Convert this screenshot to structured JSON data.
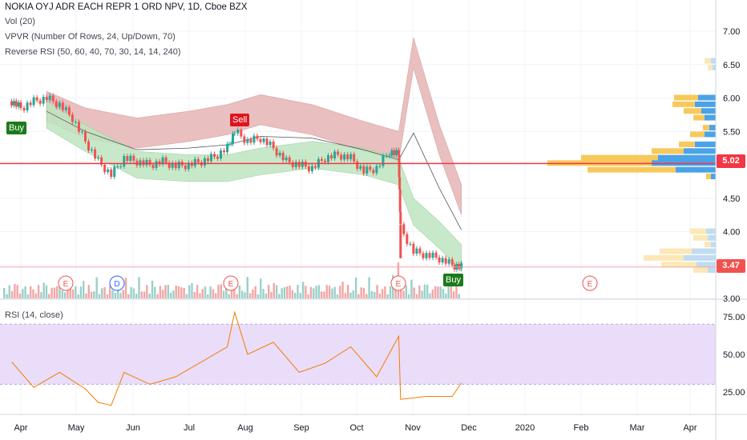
{
  "header": {
    "symbol": "NOKIA OYJ ADR EACH REPR 1 ORD NPV, 1D, Cboe BZX",
    "ind1": "Vol (20)",
    "ind2": "VPVR (Number Of Rows, 24, Up/Down, 70)",
    "ind3": "Reverse RSI (50, 60, 40, 70, 30, 14, 14, 240)"
  },
  "rsi_panel": {
    "label": "RSI (14, close)"
  },
  "price_labels": {
    "hline": "5.02",
    "current": "3.47"
  },
  "signals": {
    "buy1": "Buy",
    "sell": "Sell",
    "buy2": "Buy"
  },
  "event_markers": [
    "E",
    "D",
    "E",
    "E",
    "E"
  ],
  "colors": {
    "up": "#26a69a",
    "down": "#ef5350",
    "band_red": "#e6b4b4",
    "band_green": "#bfe6c0",
    "rsi": "#f57c00",
    "rsi_band": "#e9ddf9",
    "hline": "#f23645",
    "buy": "#1b7a1b",
    "sell": "#e0141e"
  },
  "chart_data": [
    {
      "type": "candlestick",
      "title": "NOKIA OYJ ADR EACH REPR 1 ORD NPV, 1D, Cboe BZX",
      "x_ticks": [
        "Apr",
        "May",
        "Jun",
        "Jul",
        "Aug",
        "Sep",
        "Oct",
        "Nov",
        "Dec",
        "2020",
        "Feb",
        "Mar",
        "Apr"
      ],
      "y_ticks": [
        3.0,
        3.5,
        4.0,
        4.5,
        5.0,
        5.5,
        6.0,
        6.5,
        7.0
      ],
      "ylim": [
        3.0,
        7.2
      ],
      "close_series": [
        {
          "x": "Mar 27",
          "y": 5.95
        },
        {
          "x": "Apr 1",
          "y": 5.85
        },
        {
          "x": "Apr 8",
          "y": 5.95
        },
        {
          "x": "Apr 15",
          "y": 6.0
        },
        {
          "x": "Apr 22",
          "y": 5.9
        },
        {
          "x": "Apr 29",
          "y": 5.7
        },
        {
          "x": "May 6",
          "y": 5.35
        },
        {
          "x": "May 13",
          "y": 5.05
        },
        {
          "x": "May 20",
          "y": 4.85
        },
        {
          "x": "May 27",
          "y": 5.1
        },
        {
          "x": "Jun 3",
          "y": 5.05
        },
        {
          "x": "Jun 10",
          "y": 5.0
        },
        {
          "x": "Jun 17",
          "y": 5.05
        },
        {
          "x": "Jun 24",
          "y": 4.98
        },
        {
          "x": "Jul 1",
          "y": 5.0
        },
        {
          "x": "Jul 8",
          "y": 5.05
        },
        {
          "x": "Jul 15",
          "y": 5.12
        },
        {
          "x": "Jul 22",
          "y": 5.25
        },
        {
          "x": "Jul 26",
          "y": 5.5
        },
        {
          "x": "Aug 2",
          "y": 5.35
        },
        {
          "x": "Aug 9",
          "y": 5.4
        },
        {
          "x": "Aug 16",
          "y": 5.25
        },
        {
          "x": "Aug 23",
          "y": 5.05
        },
        {
          "x": "Aug 30",
          "y": 5.0
        },
        {
          "x": "Sep 6",
          "y": 4.95
        },
        {
          "x": "Sep 13",
          "y": 5.1
        },
        {
          "x": "Sep 20",
          "y": 5.15
        },
        {
          "x": "Sep 27",
          "y": 5.1
        },
        {
          "x": "Oct 4",
          "y": 4.9
        },
        {
          "x": "Oct 11",
          "y": 4.95
        },
        {
          "x": "Oct 18",
          "y": 5.2
        },
        {
          "x": "Oct 23",
          "y": 5.15
        },
        {
          "x": "Oct 24",
          "y": 4.05
        },
        {
          "x": "Oct 31",
          "y": 3.7
        },
        {
          "x": "Nov 7",
          "y": 3.65
        },
        {
          "x": "Nov 14",
          "y": 3.6
        },
        {
          "x": "Nov 21",
          "y": 3.5
        },
        {
          "x": "Nov 26",
          "y": 3.47
        }
      ],
      "series": [
        {
          "name": "upper band",
          "values": [
            {
              "x": "Apr 15",
              "y": 6.1
            },
            {
              "x": "May 6",
              "y": 5.85
            },
            {
              "x": "Jun 3",
              "y": 5.7
            },
            {
              "x": "Jul 1",
              "y": 5.8
            },
            {
              "x": "Jul 22",
              "y": 5.9
            },
            {
              "x": "Aug 9",
              "y": 6.05
            },
            {
              "x": "Sep 6",
              "y": 5.9
            },
            {
              "x": "Oct 4",
              "y": 5.65
            },
            {
              "x": "Oct 23",
              "y": 5.5
            },
            {
              "x": "Oct 31",
              "y": 6.9
            },
            {
              "x": "Nov 14",
              "y": 5.6
            },
            {
              "x": "Nov 26",
              "y": 4.7
            }
          ]
        },
        {
          "name": "lower band",
          "values": [
            {
              "x": "Apr 15",
              "y": 5.55
            },
            {
              "x": "May 6",
              "y": 5.2
            },
            {
              "x": "Jun 3",
              "y": 4.8
            },
            {
              "x": "Jul 1",
              "y": 4.75
            },
            {
              "x": "Jul 22",
              "y": 4.75
            },
            {
              "x": "Aug 9",
              "y": 4.85
            },
            {
              "x": "Sep 6",
              "y": 4.95
            },
            {
              "x": "Oct 4",
              "y": 4.85
            },
            {
              "x": "Oct 23",
              "y": 4.7
            },
            {
              "x": "Oct 31",
              "y": 4.1
            },
            {
              "x": "Nov 14",
              "y": 3.75
            },
            {
              "x": "Nov 26",
              "y": 3.4
            }
          ]
        }
      ],
      "hline": 5.02,
      "current_price": 3.47
    },
    {
      "type": "line",
      "title": "RSI (14, close)",
      "y_ticks": [
        25.0,
        50.0,
        75.0
      ],
      "ylim": [
        10,
        82
      ],
      "band": [
        30,
        70
      ],
      "values": [
        {
          "x": "Mar 27",
          "y": 45
        },
        {
          "x": "Apr 8",
          "y": 28
        },
        {
          "x": "Apr 22",
          "y": 38
        },
        {
          "x": "May 6",
          "y": 27
        },
        {
          "x": "May 13",
          "y": 18
        },
        {
          "x": "May 20",
          "y": 16
        },
        {
          "x": "May 27",
          "y": 38
        },
        {
          "x": "Jun 10",
          "y": 30
        },
        {
          "x": "Jun 24",
          "y": 35
        },
        {
          "x": "Jul 8",
          "y": 45
        },
        {
          "x": "Jul 22",
          "y": 55
        },
        {
          "x": "Jul 26",
          "y": 78
        },
        {
          "x": "Aug 2",
          "y": 50
        },
        {
          "x": "Aug 16",
          "y": 58
        },
        {
          "x": "Aug 30",
          "y": 38
        },
        {
          "x": "Sep 13",
          "y": 44
        },
        {
          "x": "Sep 27",
          "y": 55
        },
        {
          "x": "Oct 11",
          "y": 35
        },
        {
          "x": "Oct 23",
          "y": 62
        },
        {
          "x": "Oct 24",
          "y": 20
        },
        {
          "x": "Nov 7",
          "y": 22
        },
        {
          "x": "Nov 21",
          "y": 22
        },
        {
          "x": "Nov 26",
          "y": 31
        }
      ]
    }
  ]
}
